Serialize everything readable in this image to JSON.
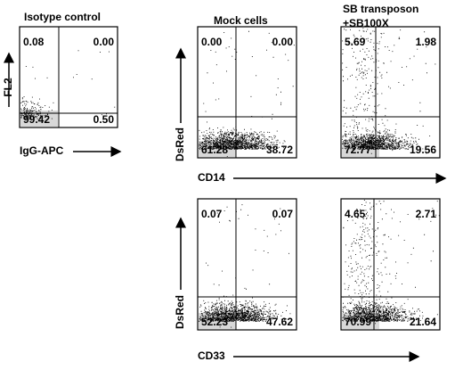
{
  "column_titles": [
    "Isotype control",
    "Mock cells",
    "SB transposon",
    "+SB100X"
  ],
  "axis_labels": {
    "fl2": "FL2",
    "igg": "IgG-APC",
    "dsred_top": "DsRed",
    "cd14": "CD14",
    "dsred_bottom": "DsRed",
    "cd33": "CD33"
  },
  "panels": [
    {
      "upper_left": "0.08",
      "upper_right": "0.00",
      "lower_left": "99.42",
      "lower_right": "0.50"
    },
    {
      "upper_left": "0.00",
      "upper_right": "0.00",
      "lower_left": "61.28",
      "lower_right": "38.72"
    },
    {
      "upper_left": "5.69",
      "upper_right": "1.98",
      "lower_left": "72.77",
      "lower_right": "19.56"
    },
    {
      "upper_left": "0.07",
      "upper_right": "0.07",
      "lower_left": "52.23",
      "lower_right": "47.62"
    },
    {
      "upper_left": "4.65",
      "upper_right": "2.71",
      "lower_left": "70.99",
      "lower_right": "21.64"
    }
  ]
}
